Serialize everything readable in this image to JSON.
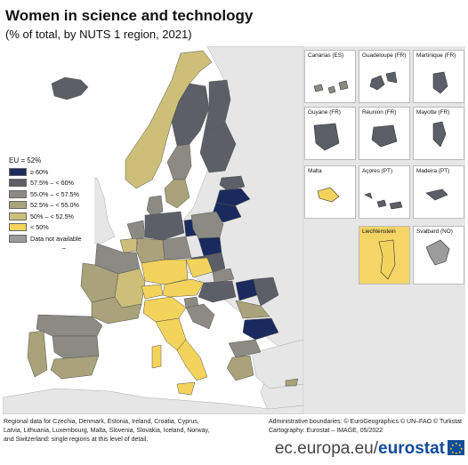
{
  "title": "Women in science and technology",
  "subtitle": "(% of total, by NUTS 1 region, 2021)",
  "colors": {
    "c60": "#1b2a5c",
    "c57": "#5d5f68",
    "c55": "#8b8b84",
    "c52": "#a9a27a",
    "c50": "#cdbf78",
    "c0": "#f3d35c",
    "na": "#9c9c9c",
    "sea": "#ffffff",
    "nonEU": "#e6e6e6"
  },
  "legend": {
    "heading": "EU = 52%",
    "items": [
      {
        "label": "≥ 60%",
        "color": "#1b2a5c"
      },
      {
        "label": "57.5% – < 60%",
        "color": "#5d5f68"
      },
      {
        "label": "55.0% – < 57.5%",
        "color": "#8b8b84"
      },
      {
        "label": "52.5% – < 55.0%",
        "color": "#a9a27a"
      },
      {
        "label": "50% – < 52.5%",
        "color": "#cdbf78"
      },
      {
        "label": "< 50%",
        "color": "#f3d35c"
      },
      {
        "label": "Data not available",
        "color": "#9c9c9c"
      }
    ]
  },
  "insets": [
    {
      "label": "Canarias (ES)",
      "cls": "c55"
    },
    {
      "label": "Guadeloupe (FR)",
      "cls": "c57"
    },
    {
      "label": "Martinique (FR)",
      "cls": "c57"
    },
    {
      "label": "Guyane (FR)",
      "cls": "c57"
    },
    {
      "label": "Réunion (FR)",
      "cls": "c57"
    },
    {
      "label": "Mayotte (FR)",
      "cls": "c57"
    },
    {
      "label": "Malta",
      "cls": "c0"
    },
    {
      "label": "Açores (PT)",
      "cls": "c57"
    },
    {
      "label": "Madeira (PT)",
      "cls": "c57"
    },
    {
      "label": "Liechtenstein",
      "cls": "c0"
    },
    {
      "label": "Svalbard (NO)",
      "cls": "na"
    }
  ],
  "scale_labels": [
    "0",
    "10",
    "0",
    "50",
    "0",
    "10"
  ],
  "footnote_left": [
    "Regional data for Czechia, Denmark, Estonia, Ireland, Croatia, Cyprus,",
    "Latvia, Lithuania, Luxembourg, Malta, Slovenia, Slovakia, Iceland, Norway,",
    "and Switzerland: single regions at this level of detail."
  ],
  "footnote_right": [
    "Administrative boundaries: © EuroGeographics © UN–FAO © Turkstat",
    "Cartography: Eurostat – IMAGE, 05/2022"
  ],
  "brand": {
    "domain": "ec.europa.eu/",
    "name": "eurostat"
  }
}
